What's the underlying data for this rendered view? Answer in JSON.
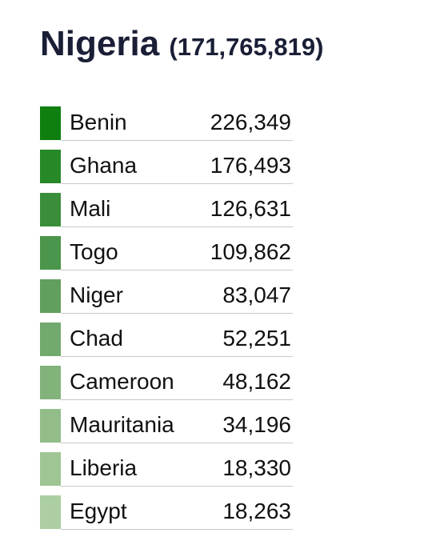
{
  "header": {
    "title": "Nigeria",
    "subtitle": "(171,765,819)"
  },
  "table": {
    "rows": [
      {
        "name": "Benin",
        "value": "226,349",
        "color": "#0f800f"
      },
      {
        "name": "Ghana",
        "value": "176,493",
        "color": "#268826"
      },
      {
        "name": "Mali",
        "value": "126,631",
        "color": "#3a8e3a"
      },
      {
        "name": "Togo",
        "value": "109,862",
        "color": "#4c954c"
      },
      {
        "name": "Niger",
        "value": "83,047",
        "color": "#619f5f"
      },
      {
        "name": "Chad",
        "value": "52,251",
        "color": "#72a96e"
      },
      {
        "name": "Cameroon",
        "value": "48,162",
        "color": "#82b37b"
      },
      {
        "name": "Mauritania",
        "value": "34,196",
        "color": "#92bd88"
      },
      {
        "name": "Liberia",
        "value": "18,330",
        "color": "#a0c594"
      },
      {
        "name": "Egypt",
        "value": "18,263",
        "color": "#adcea1"
      }
    ]
  }
}
